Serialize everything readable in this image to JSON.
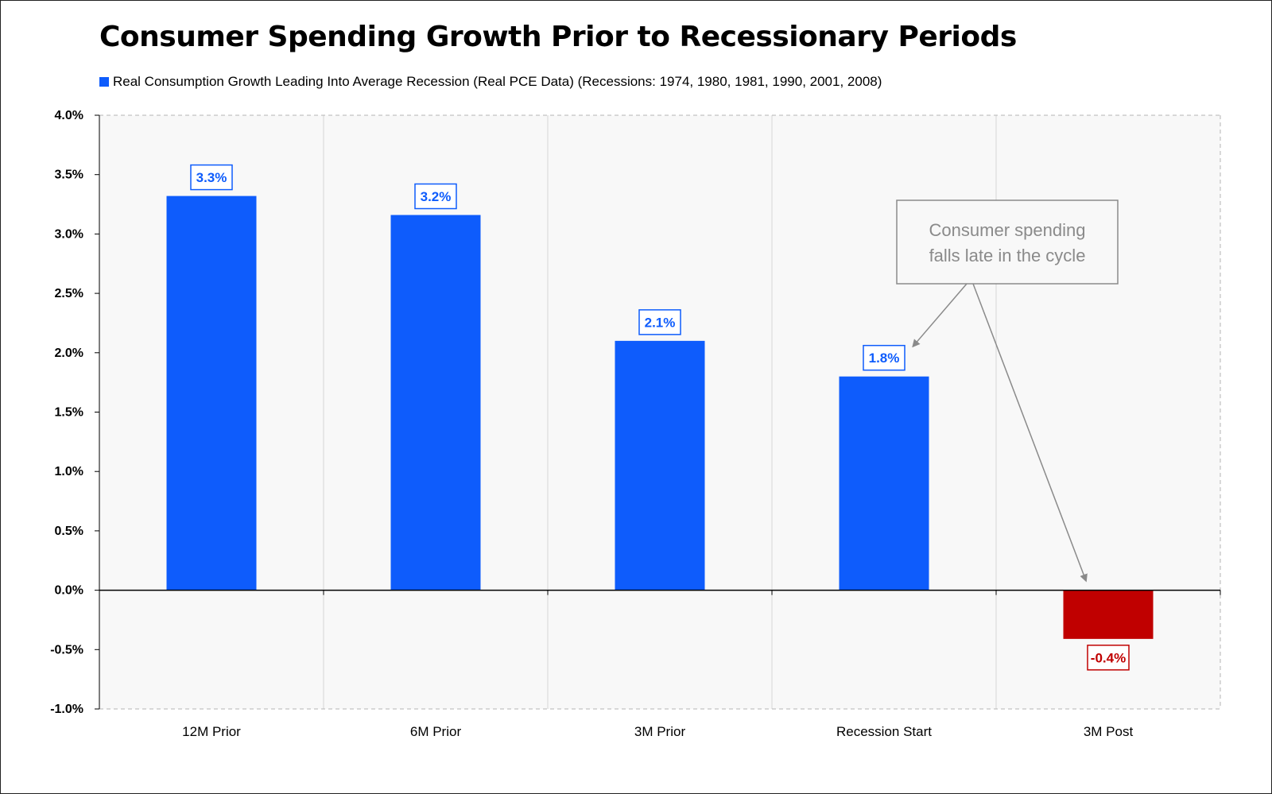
{
  "chart_data": {
    "type": "bar",
    "title": "Consumer Spending Growth Prior to Recessionary Periods",
    "legend": {
      "placement": "top-left",
      "entries": [
        "Real Consumption Growth Leading Into Average Recession (Real PCE Data) (Recessions: 1974, 1980, 1981, 1990, 2001, 2008)"
      ]
    },
    "categories": [
      "12M Prior",
      "6M Prior",
      "3M Prior",
      "Recession Start",
      "3M Post"
    ],
    "series": [
      {
        "name": "Real Consumption Growth Leading Into Average Recession (Real PCE Data) (Recessions: 1974, 1980, 1981, 1990, 2001, 2008)",
        "values": [
          3.32,
          3.16,
          2.1,
          1.8,
          -0.41
        ],
        "data_labels": [
          "3.3%",
          "3.2%",
          "2.1%",
          "1.8%",
          "-0.4%"
        ]
      }
    ],
    "ylim": [
      -1.0,
      4.0
    ],
    "yticks": [
      4.0,
      3.5,
      3.0,
      2.5,
      2.0,
      1.5,
      1.0,
      0.5,
      0.0,
      -0.5,
      -1.0
    ],
    "ytick_labels": [
      "4.0%",
      "3.5%",
      "3.0%",
      "2.5%",
      "2.0%",
      "1.5%",
      "1.0%",
      "0.5%",
      "0.0%",
      "-0.5%",
      "-1.0%"
    ],
    "xlabel": "",
    "ylabel": "",
    "grid": "vertical",
    "annotation": {
      "lines": [
        "Consumer spending",
        "falls late in the cycle"
      ],
      "points_to": [
        "Recession Start",
        "3M Post"
      ]
    },
    "colors": {
      "positive": "#0e5cfc",
      "negative": "#c00000",
      "plot_background": "#f8f8f8",
      "annotation": "#8a8a8a"
    }
  }
}
